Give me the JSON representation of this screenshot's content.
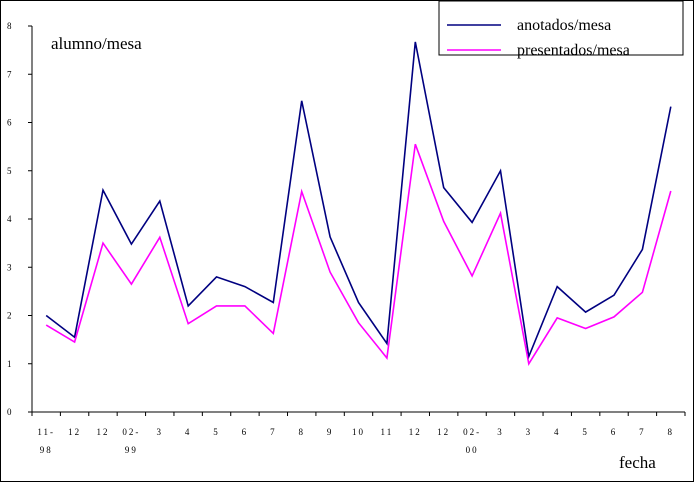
{
  "chart_data": {
    "type": "line",
    "title": "alumno/mesa",
    "xlabel": "fecha",
    "ylabel": "",
    "ylim": [
      0,
      8
    ],
    "yticks": [
      "0",
      "1",
      "2",
      "3",
      "4",
      "5",
      "6",
      "7",
      "8"
    ],
    "categories": [
      [
        "11-",
        "98"
      ],
      [
        "12",
        ""
      ],
      [
        "12",
        ""
      ],
      [
        "02-",
        "99"
      ],
      [
        "3",
        ""
      ],
      [
        "4",
        ""
      ],
      [
        "5",
        ""
      ],
      [
        "6",
        ""
      ],
      [
        "7",
        ""
      ],
      [
        "8",
        ""
      ],
      [
        "9",
        ""
      ],
      [
        "10",
        ""
      ],
      [
        "11",
        ""
      ],
      [
        "12",
        ""
      ],
      [
        "12",
        ""
      ],
      [
        "02-",
        "00"
      ],
      [
        "3",
        ""
      ],
      [
        "3",
        ""
      ],
      [
        "4",
        ""
      ],
      [
        "5",
        ""
      ],
      [
        "6",
        ""
      ],
      [
        "7",
        ""
      ],
      [
        "8",
        ""
      ]
    ],
    "legend_position": "top-right",
    "series": [
      {
        "name": "anotados/mesa",
        "color": "#000080",
        "values": [
          2.0,
          1.55,
          4.6,
          3.48,
          4.37,
          2.2,
          2.8,
          2.6,
          2.27,
          6.45,
          3.63,
          2.27,
          1.42,
          7.67,
          4.65,
          3.93,
          5.0,
          1.15,
          2.6,
          2.07,
          2.42,
          3.37,
          6.33
        ]
      },
      {
        "name": "presentados/mesa",
        "color": "#ff00ff",
        "values": [
          1.8,
          1.45,
          3.5,
          2.65,
          3.62,
          1.83,
          2.2,
          2.2,
          1.63,
          4.57,
          2.9,
          1.85,
          1.12,
          5.55,
          3.95,
          2.82,
          4.12,
          1.0,
          1.95,
          1.73,
          1.97,
          2.48,
          4.58
        ]
      }
    ]
  }
}
